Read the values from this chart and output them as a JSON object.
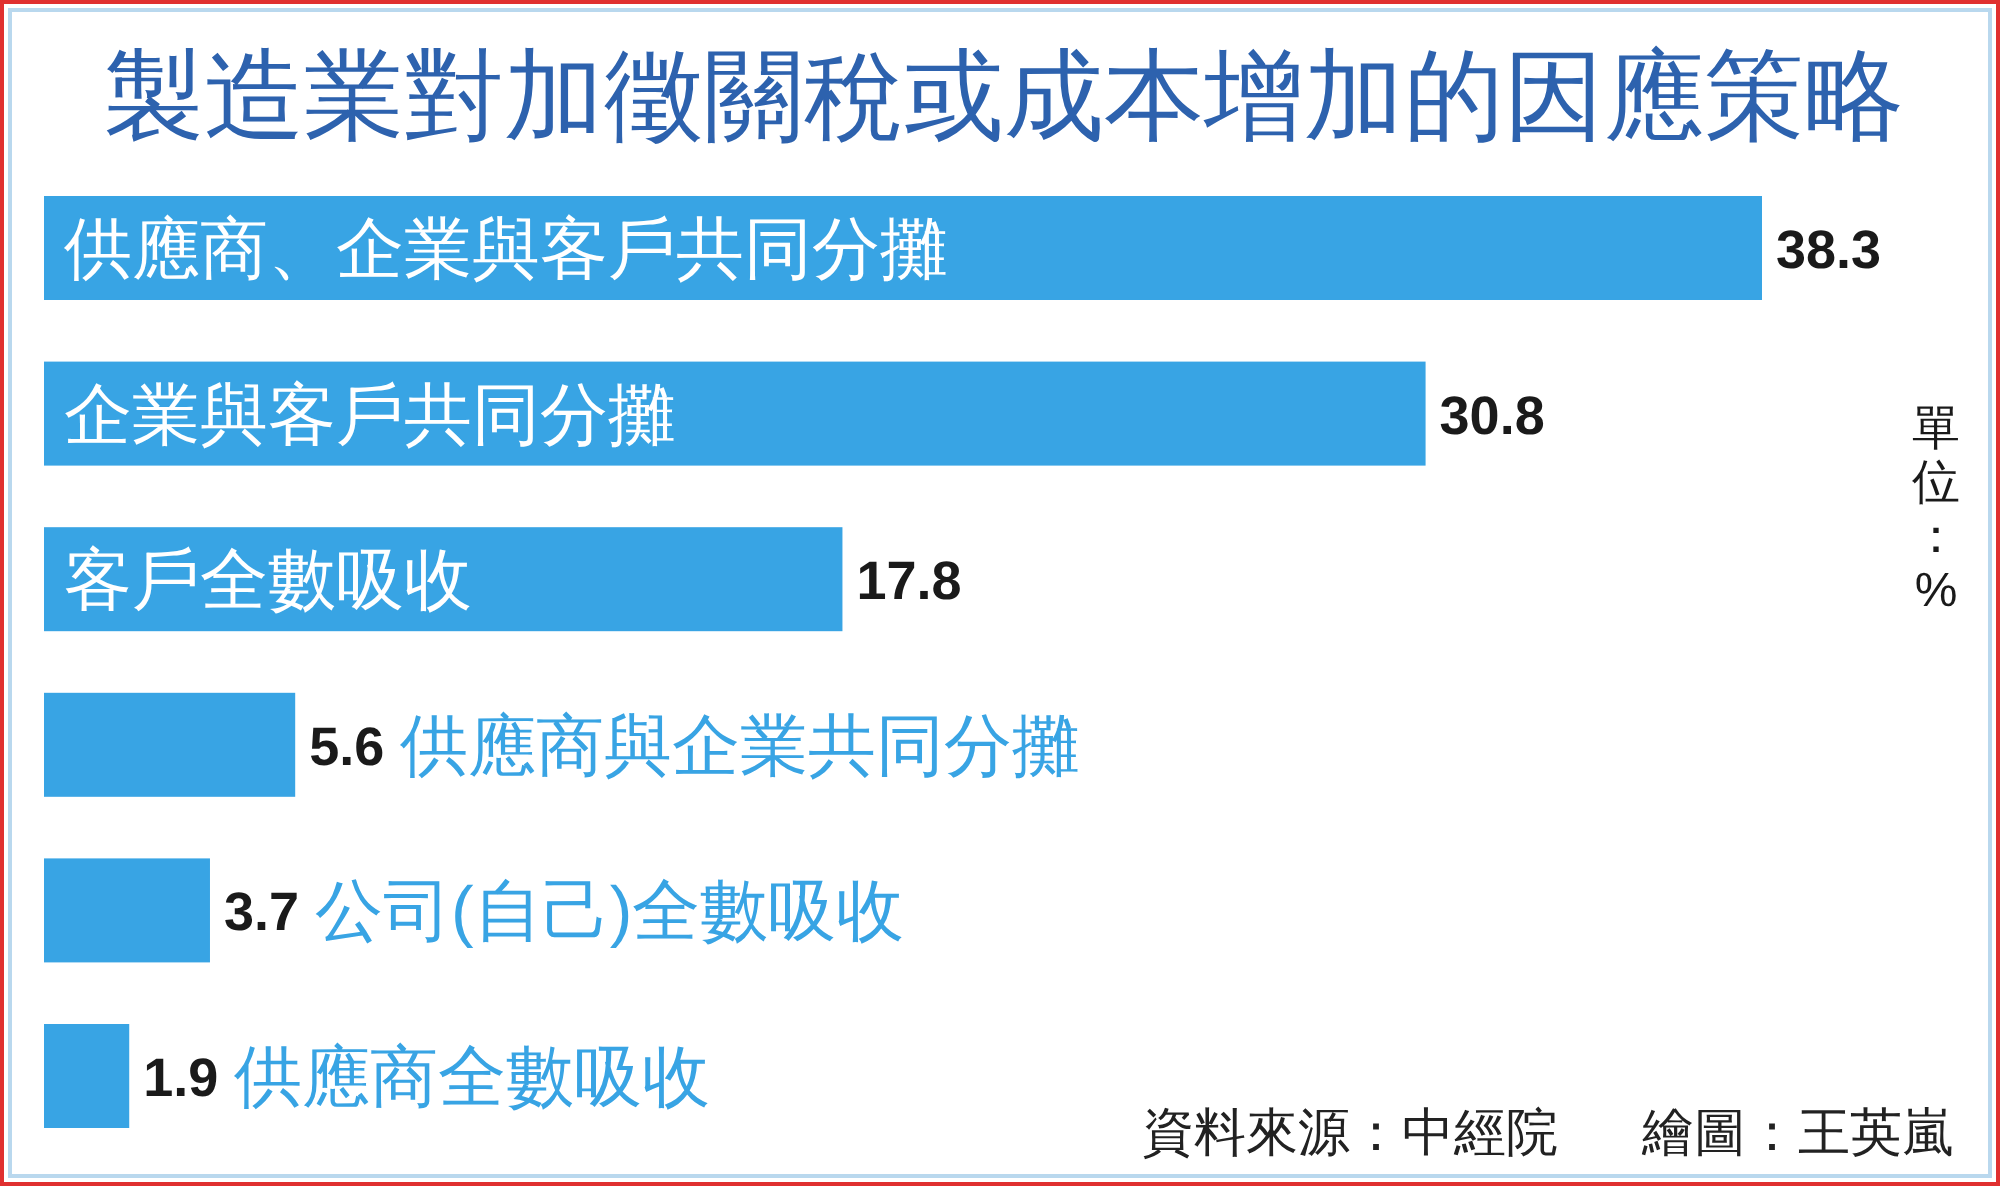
{
  "chart_data": {
    "type": "bar",
    "orientation": "horizontal",
    "title": "製造業對加徵關稅或成本增加的因應策略",
    "categories": [
      "供應商、企業與客戶共同分攤",
      "企業與客戶共同分攤",
      "客戶全數吸收",
      "供應商與企業共同分攤",
      "公司(自己)全數吸收",
      "供應商全數吸收"
    ],
    "values": [
      38.3,
      30.8,
      17.8,
      5.6,
      3.7,
      1.9
    ],
    "color": "#38a4e4",
    "data_labels": true,
    "annotations": [
      "單位：%",
      "資料來源：中經院",
      "繪圖：王英嵐"
    ]
  }
}
